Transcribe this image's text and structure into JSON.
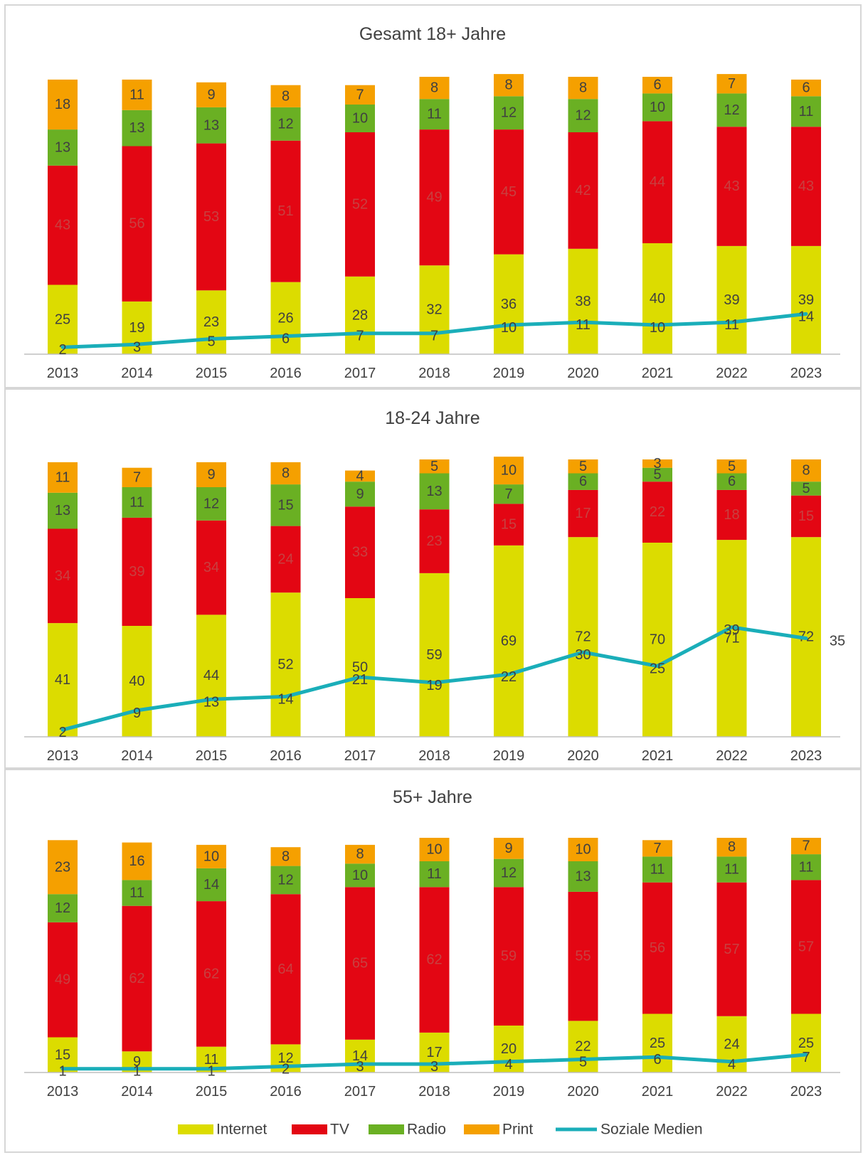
{
  "chart_data": [
    {
      "type": "bar",
      "stacked": true,
      "title": "Gesamt 18+ Jahre",
      "categories": [
        "2013",
        "2014",
        "2015",
        "2016",
        "2017",
        "2018",
        "2019",
        "2020",
        "2021",
        "2022",
        "2023"
      ],
      "series": [
        {
          "name": "Internet",
          "values": [
            25,
            19,
            23,
            26,
            28,
            32,
            36,
            38,
            40,
            39,
            39
          ]
        },
        {
          "name": "TV",
          "values": [
            43,
            56,
            53,
            51,
            52,
            49,
            45,
            42,
            44,
            43,
            43
          ]
        },
        {
          "name": "Radio",
          "values": [
            13,
            13,
            13,
            12,
            10,
            11,
            12,
            12,
            10,
            12,
            11
          ]
        },
        {
          "name": "Print",
          "values": [
            18,
            11,
            9,
            8,
            7,
            8,
            8,
            8,
            6,
            7,
            6
          ]
        }
      ],
      "line_series": {
        "name": "Soziale Medien",
        "values": [
          2,
          3,
          5,
          6,
          7,
          7,
          10,
          11,
          10,
          11,
          14
        ]
      },
      "ylim": [
        0,
        100
      ]
    },
    {
      "type": "bar",
      "stacked": true,
      "title": "18-24 Jahre",
      "categories": [
        "2013",
        "2014",
        "2015",
        "2016",
        "2017",
        "2018",
        "2019",
        "2020",
        "2021",
        "2022",
        "2023"
      ],
      "series": [
        {
          "name": "Internet",
          "values": [
            41,
            40,
            44,
            52,
            50,
            59,
            69,
            72,
            70,
            71,
            72
          ]
        },
        {
          "name": "TV",
          "values": [
            34,
            39,
            34,
            24,
            33,
            23,
            15,
            17,
            22,
            18,
            15
          ]
        },
        {
          "name": "Radio",
          "values": [
            13,
            11,
            12,
            15,
            9,
            13,
            7,
            6,
            5,
            6,
            5
          ]
        },
        {
          "name": "Print",
          "values": [
            11,
            7,
            9,
            8,
            4,
            5,
            10,
            5,
            3,
            5,
            8
          ]
        }
      ],
      "line_series": {
        "name": "Soziale Medien",
        "values": [
          2,
          9,
          13,
          14,
          21,
          19,
          22,
          30,
          25,
          39,
          35
        ]
      },
      "ylim": [
        0,
        100
      ]
    },
    {
      "type": "bar",
      "stacked": true,
      "title": "55+ Jahre",
      "categories": [
        "2013",
        "2014",
        "2015",
        "2016",
        "2017",
        "2018",
        "2019",
        "2020",
        "2021",
        "2022",
        "2023"
      ],
      "series": [
        {
          "name": "Internet",
          "values": [
            15,
            9,
            11,
            12,
            14,
            17,
            20,
            22,
            25,
            24,
            25
          ]
        },
        {
          "name": "TV",
          "values": [
            49,
            62,
            62,
            64,
            65,
            62,
            59,
            55,
            56,
            57,
            57
          ]
        },
        {
          "name": "Radio",
          "values": [
            12,
            11,
            14,
            12,
            10,
            11,
            12,
            13,
            11,
            11,
            11
          ]
        },
        {
          "name": "Print",
          "values": [
            23,
            16,
            10,
            8,
            8,
            10,
            9,
            10,
            7,
            8,
            7
          ]
        }
      ],
      "line_series": {
        "name": "Soziale Medien",
        "values": [
          1,
          1,
          1,
          2,
          3,
          3,
          4,
          5,
          6,
          4,
          7
        ]
      },
      "ylim": [
        0,
        100
      ]
    }
  ],
  "legend": {
    "placement": "bottom",
    "items": [
      {
        "label": "Internet",
        "color": "#dcdc00",
        "kind": "bar"
      },
      {
        "label": "TV",
        "color": "#e30613",
        "kind": "bar"
      },
      {
        "label": "Radio",
        "color": "#6ab023",
        "kind": "bar"
      },
      {
        "label": "Print",
        "color": "#f5a000",
        "kind": "bar"
      },
      {
        "label": "Soziale Medien",
        "color": "#1aaeb9",
        "kind": "line"
      }
    ]
  },
  "colors": {
    "Internet": "#dcdc00",
    "TV": "#e30613",
    "Radio": "#6ab023",
    "Print": "#f5a000",
    "Soziale Medien": "#1aaeb9",
    "label_on_light": "#404040",
    "label_on_tv": "#c84040"
  }
}
